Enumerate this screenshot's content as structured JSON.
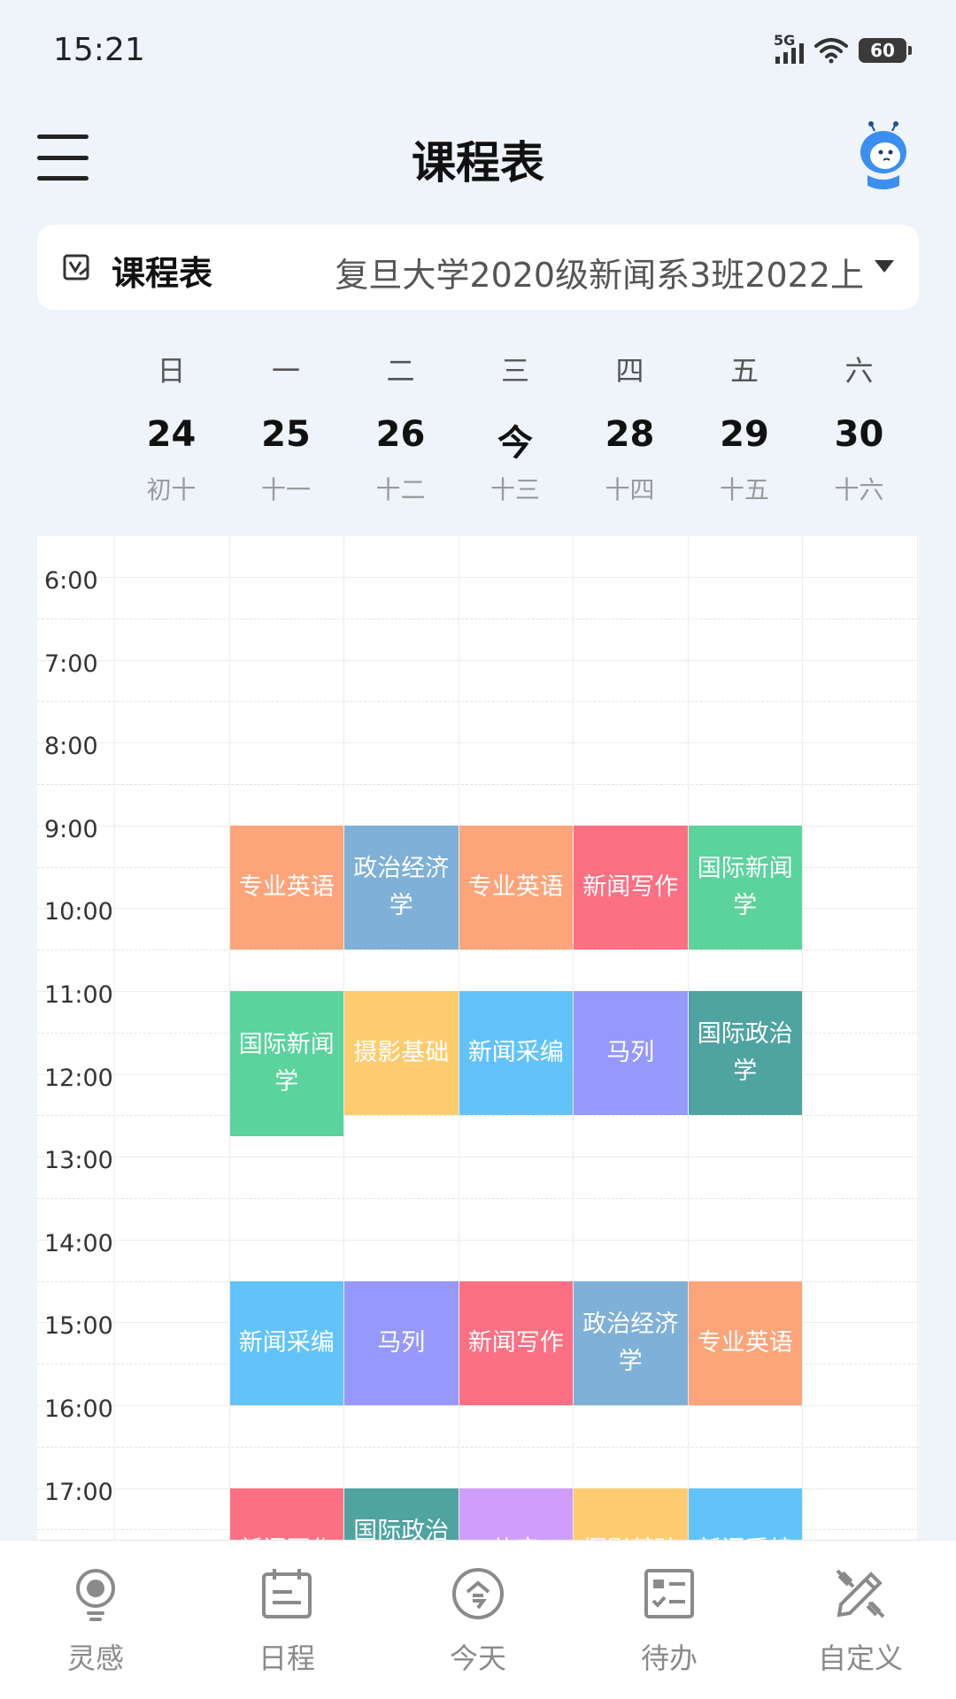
{
  "status": {
    "time": "15:21",
    "network": "5G",
    "battery": "60"
  },
  "header": {
    "title": "课程表",
    "menu_icon": "menu-icon",
    "avatar": "robot-avatar"
  },
  "selector": {
    "label": "课程表",
    "value": "复旦大学2020级新闻系3班2022上"
  },
  "days": [
    {
      "weekday": "日",
      "date": "24",
      "lunar": "初十"
    },
    {
      "weekday": "一",
      "date": "25",
      "lunar": "十一"
    },
    {
      "weekday": "二",
      "date": "26",
      "lunar": "十二"
    },
    {
      "weekday": "三",
      "date": "今",
      "lunar": "十三"
    },
    {
      "weekday": "四",
      "date": "28",
      "lunar": "十四"
    },
    {
      "weekday": "五",
      "date": "29",
      "lunar": "十五"
    },
    {
      "weekday": "六",
      "date": "30",
      "lunar": "十六"
    }
  ],
  "times": [
    "6:00",
    "7:00",
    "8:00",
    "9:00",
    "10:00",
    "11:00",
    "12:00",
    "13:00",
    "14:00",
    "15:00",
    "16:00",
    "17:00"
  ],
  "courses": [
    {
      "name": "专业英语",
      "day": 1,
      "start": 8.5,
      "end": 10,
      "color": "#fda47a"
    },
    {
      "name": "政治经济学",
      "day": 2,
      "start": 8.5,
      "end": 10,
      "color": "#7eb0d8"
    },
    {
      "name": "专业英语",
      "day": 3,
      "start": 8.5,
      "end": 10,
      "color": "#fda47a"
    },
    {
      "name": "新闻写作",
      "day": 4,
      "start": 8.5,
      "end": 10,
      "color": "#fd6f82"
    },
    {
      "name": "国际新闻学",
      "day": 5,
      "start": 8.5,
      "end": 10,
      "color": "#5ad39c"
    },
    {
      "name": "国际新闻学",
      "day": 1,
      "start": 10.5,
      "end": 12.25,
      "color": "#5ad39c"
    },
    {
      "name": "摄影基础",
      "day": 2,
      "start": 10.5,
      "end": 12,
      "color": "#fecb6e"
    },
    {
      "name": "新闻采编",
      "day": 3,
      "start": 10.5,
      "end": 12,
      "color": "#62c3fb"
    },
    {
      "name": "马列",
      "day": 4,
      "start": 10.5,
      "end": 12,
      "color": "#9698fb"
    },
    {
      "name": "国际政治学",
      "day": 5,
      "start": 10.5,
      "end": 12,
      "color": "#4fa3a1"
    },
    {
      "name": "新闻采编",
      "day": 1,
      "start": 14,
      "end": 15.5,
      "color": "#62c3fb"
    },
    {
      "name": "马列",
      "day": 2,
      "start": 14,
      "end": 15.5,
      "color": "#9698fb"
    },
    {
      "name": "新闻写作",
      "day": 3,
      "start": 14,
      "end": 15.5,
      "color": "#fd6f82"
    },
    {
      "name": "政治经济学",
      "day": 4,
      "start": 14,
      "end": 15.5,
      "color": "#7eb0d8"
    },
    {
      "name": "专业英语",
      "day": 5,
      "start": 14,
      "end": 15.5,
      "color": "#fda47a"
    },
    {
      "name": "新闻写作",
      "day": 1,
      "start": 16.5,
      "end": 18,
      "color": "#fd6f82"
    },
    {
      "name": "国际政治学",
      "day": 2,
      "start": 16.5,
      "end": 18,
      "color": "#4fa3a1"
    },
    {
      "name": "体育",
      "day": 3,
      "start": 16.5,
      "end": 18,
      "color": "#cf9dfb"
    },
    {
      "name": "摄影基础",
      "day": 4,
      "start": 16.5,
      "end": 18,
      "color": "#fecb6e"
    },
    {
      "name": "新闻采编",
      "day": 5,
      "start": 16.5,
      "end": 18,
      "color": "#62c3fb"
    }
  ],
  "nav": [
    {
      "label": "灵感",
      "icon": "lightbulb-icon"
    },
    {
      "label": "日程",
      "icon": "calendar-icon"
    },
    {
      "label": "今天",
      "icon": "today-icon"
    },
    {
      "label": "待办",
      "icon": "todo-icon"
    },
    {
      "label": "自定义",
      "icon": "customize-icon"
    }
  ]
}
